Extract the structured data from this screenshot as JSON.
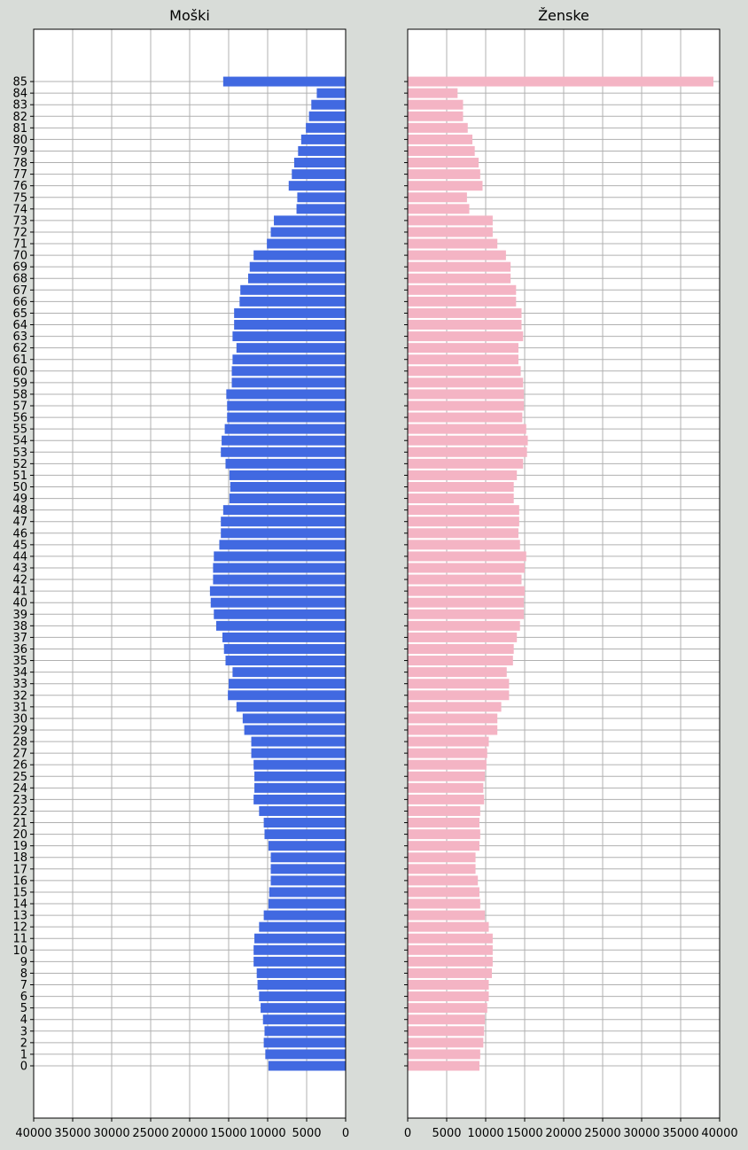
{
  "chart_data": [
    {
      "type": "bar",
      "orientation": "horizontal",
      "title": "Moški",
      "xlim": [
        40000,
        0
      ],
      "xticks": [
        40000,
        35000,
        30000,
        25000,
        20000,
        15000,
        10000,
        5000,
        0
      ],
      "grid": true,
      "color": "#4169e1",
      "categories": [
        "0",
        "1",
        "2",
        "3",
        "4",
        "5",
        "6",
        "7",
        "8",
        "9",
        "10",
        "11",
        "12",
        "13",
        "14",
        "15",
        "16",
        "17",
        "18",
        "19",
        "20",
        "21",
        "22",
        "23",
        "24",
        "25",
        "26",
        "27",
        "28",
        "29",
        "30",
        "31",
        "32",
        "33",
        "34",
        "35",
        "36",
        "37",
        "38",
        "39",
        "40",
        "41",
        "42",
        "43",
        "44",
        "45",
        "46",
        "47",
        "48",
        "49",
        "50",
        "51",
        "52",
        "53",
        "54",
        "55",
        "56",
        "57",
        "58",
        "59",
        "60",
        "61",
        "62",
        "63",
        "64",
        "65",
        "66",
        "67",
        "68",
        "69",
        "70",
        "71",
        "72",
        "73",
        "74",
        "75",
        "76",
        "77",
        "78",
        "79",
        "80",
        "81",
        "82",
        "83",
        "84",
        "85"
      ],
      "values": [
        9900,
        10300,
        10500,
        10400,
        10600,
        10900,
        11100,
        11300,
        11400,
        11800,
        11800,
        11700,
        11100,
        10500,
        9900,
        9800,
        9600,
        9600,
        9600,
        9900,
        10400,
        10500,
        11100,
        11800,
        11700,
        11700,
        11800,
        12100,
        12100,
        13000,
        13200,
        14000,
        15100,
        15000,
        14500,
        15400,
        15600,
        15800,
        16600,
        16900,
        17300,
        17400,
        17000,
        17000,
        16900,
        16200,
        16000,
        16000,
        15700,
        14900,
        14800,
        14900,
        15400,
        16000,
        15900,
        15500,
        15200,
        15200,
        15300,
        14600,
        14600,
        14500,
        14000,
        14500,
        14300,
        14300,
        13600,
        13500,
        12500,
        12300,
        11800,
        10100,
        9600,
        9200,
        6300,
        6200,
        7300,
        6900,
        6600,
        6100,
        5700,
        5100,
        4700,
        4400,
        3700,
        15700
      ]
    },
    {
      "type": "bar",
      "orientation": "horizontal",
      "title": "Ženske",
      "xlim": [
        0,
        40000
      ],
      "xticks": [
        0,
        5000,
        10000,
        15000,
        20000,
        25000,
        30000,
        35000,
        40000
      ],
      "grid": true,
      "color": "#f4b4c4",
      "categories": [
        "0",
        "1",
        "2",
        "3",
        "4",
        "5",
        "6",
        "7",
        "8",
        "9",
        "10",
        "11",
        "12",
        "13",
        "14",
        "15",
        "16",
        "17",
        "18",
        "19",
        "20",
        "21",
        "22",
        "23",
        "24",
        "25",
        "26",
        "27",
        "28",
        "29",
        "30",
        "31",
        "32",
        "33",
        "34",
        "35",
        "36",
        "37",
        "38",
        "39",
        "40",
        "41",
        "42",
        "43",
        "44",
        "45",
        "46",
        "47",
        "48",
        "49",
        "50",
        "51",
        "52",
        "53",
        "54",
        "55",
        "56",
        "57",
        "58",
        "59",
        "60",
        "61",
        "62",
        "63",
        "64",
        "65",
        "66",
        "67",
        "68",
        "69",
        "70",
        "71",
        "72",
        "73",
        "74",
        "75",
        "76",
        "77",
        "78",
        "79",
        "80",
        "81",
        "82",
        "83",
        "84",
        "85"
      ],
      "values": [
        9200,
        9300,
        9700,
        9800,
        9900,
        10200,
        10400,
        10400,
        10800,
        10900,
        10900,
        10900,
        10400,
        9900,
        9300,
        9200,
        9000,
        8700,
        8700,
        9200,
        9300,
        9200,
        9300,
        9800,
        9700,
        9900,
        10100,
        10200,
        10400,
        11500,
        11500,
        12000,
        13000,
        13000,
        12700,
        13500,
        13600,
        14000,
        14400,
        14900,
        14900,
        15000,
        14600,
        15000,
        15200,
        14400,
        14200,
        14300,
        14300,
        13600,
        13600,
        14000,
        14800,
        15300,
        15400,
        15200,
        14700,
        14900,
        14900,
        14800,
        14500,
        14200,
        14200,
        14800,
        14600,
        14600,
        13900,
        13900,
        13200,
        13200,
        12600,
        11500,
        10900,
        10900,
        7900,
        7600,
        9600,
        9300,
        9100,
        8600,
        8300,
        7700,
        7100,
        7100,
        6400,
        39200
      ]
    }
  ]
}
